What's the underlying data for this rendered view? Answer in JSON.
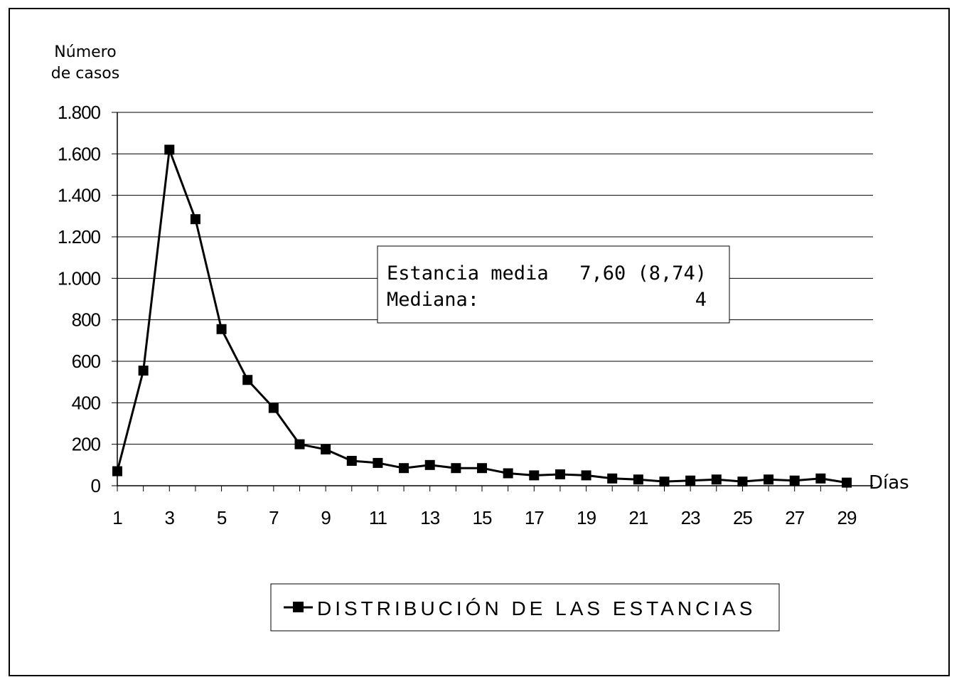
{
  "chart_data": {
    "type": "line",
    "title": "",
    "ylabel_lines": [
      "Número",
      "de casos"
    ],
    "xlabel": "Días",
    "ylim": [
      0,
      1800
    ],
    "yticks": [
      0,
      200,
      400,
      600,
      800,
      1000,
      1200,
      1400,
      1600,
      1800
    ],
    "ytick_labels": [
      "0",
      "200",
      "400",
      "600",
      "800",
      "1.000",
      "1.200",
      "1.400",
      "1.600",
      "1.800"
    ],
    "xticks": [
      1,
      3,
      5,
      7,
      9,
      11,
      13,
      15,
      17,
      19,
      21,
      23,
      25,
      27,
      29
    ],
    "x": [
      1,
      2,
      3,
      4,
      5,
      6,
      7,
      8,
      9,
      10,
      11,
      12,
      13,
      14,
      15,
      16,
      17,
      18,
      19,
      20,
      21,
      22,
      23,
      24,
      25,
      26,
      27,
      28,
      29
    ],
    "series": [
      {
        "name": "DISTRIBUCIÓN DE LAS ESTANCIAS",
        "values": [
          70,
          555,
          1620,
          1285,
          755,
          510,
          375,
          200,
          175,
          120,
          110,
          85,
          100,
          85,
          85,
          60,
          50,
          55,
          50,
          35,
          30,
          20,
          25,
          30,
          20,
          30,
          25,
          35,
          15
        ]
      }
    ],
    "grid": true,
    "legend_position": "bottom-center",
    "annotation": {
      "rows": [
        {
          "label": "Estancia media",
          "value": "7,60 (8,74)"
        },
        {
          "label": "Mediana:",
          "value": "4"
        }
      ]
    },
    "colors": {
      "line": "#000000",
      "grid": "#000000",
      "background": "#ffffff"
    }
  }
}
